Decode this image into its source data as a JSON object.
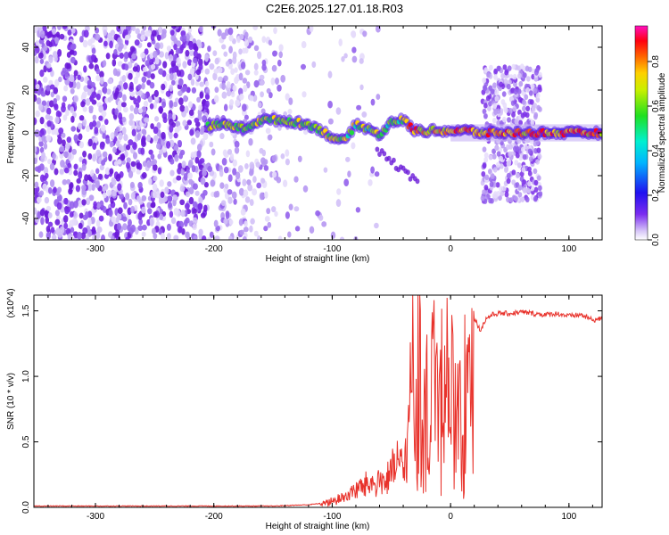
{
  "title": "C2E6.2025.127.01.18.R03",
  "colors": {
    "snr_line": "#e8312a",
    "frame": "#000000"
  },
  "chart_data": [
    {
      "type": "heatmap",
      "xlabel": "Height of straight line (km)",
      "ylabel": "Frequency (Hz)",
      "xlim": [
        -352,
        128
      ],
      "ylim": [
        -50,
        50
      ],
      "xticks": [
        -300,
        -200,
        -100,
        0,
        100
      ],
      "xtick_labels": [
        "-300",
        "-200",
        "-100",
        "0",
        "100"
      ],
      "yticks": [
        -40,
        -20,
        0,
        20,
        40
      ],
      "ytick_labels": [
        "-40",
        "-20",
        "0",
        "20",
        "40"
      ],
      "colorbar": {
        "label": "Normalized spectral amplitude",
        "range": [
          0,
          0.96
        ],
        "ticks": [
          0.0,
          0.2,
          0.4,
          0.6,
          0.8
        ],
        "tick_labels": [
          "0.0",
          "0.2",
          "0.4",
          "0.6",
          "0.8"
        ],
        "colormap": "rainbow (white, violet, blue, cyan, green, yellow, orange, red, magenta)"
      },
      "features": {
        "noise_region_x": [
          -352,
          -135
        ],
        "signal_track": [
          [
            -205,
            3
          ],
          [
            -190,
            4
          ],
          [
            -175,
            2
          ],
          [
            -160,
            6
          ],
          [
            -145,
            6
          ],
          [
            -130,
            5
          ],
          [
            -115,
            3
          ],
          [
            -100,
            -2
          ],
          [
            -90,
            -4
          ],
          [
            -80,
            4
          ],
          [
            -70,
            2
          ],
          [
            -60,
            -1
          ],
          [
            -50,
            5
          ],
          [
            -40,
            6
          ],
          [
            -30,
            1
          ],
          [
            -15,
            1
          ],
          [
            0,
            1
          ],
          [
            15,
            1
          ],
          [
            25,
            0
          ],
          [
            50,
            0
          ],
          [
            75,
            0
          ],
          [
            100,
            0
          ],
          [
            128,
            0
          ]
        ],
        "wideband_block_x": [
          27,
          76
        ],
        "wideband_block_ylim": [
          -32,
          31
        ]
      }
    },
    {
      "type": "line",
      "xlabel": "Height of straight line (km)",
      "ylabel": "SNR (10 * v/v)",
      "y_multiplier": "(x10^4)",
      "xlim": [
        -352,
        128
      ],
      "ylim": [
        0,
        1.62
      ],
      "xticks": [
        -300,
        -200,
        -100,
        0,
        100
      ],
      "xtick_labels": [
        "-300",
        "-200",
        "-100",
        "0",
        "100"
      ],
      "yticks": [
        0.0,
        0.5,
        1.0,
        1.5
      ],
      "ytick_labels": [
        "0.0",
        "0.5",
        "1.0",
        "1.5"
      ],
      "series": [
        {
          "x": [
            -352,
            -300,
            -250,
            -200,
            -150,
            -120,
            -110,
            -100,
            -90,
            -80,
            -70,
            -60,
            -50,
            -45,
            -40,
            -35,
            -32,
            -30,
            -28,
            -25,
            -22,
            -20,
            -18,
            -15,
            -12,
            -10,
            -8,
            -5,
            -3,
            0,
            3,
            5,
            8,
            10,
            12,
            14,
            16,
            18,
            20,
            25,
            30,
            35,
            40,
            50,
            60,
            70,
            80,
            90,
            100,
            110,
            120,
            128
          ],
          "y": [
            0.01,
            0.01,
            0.01,
            0.01,
            0.01,
            0.02,
            0.03,
            0.06,
            0.1,
            0.17,
            0.22,
            0.25,
            0.3,
            0.45,
            0.35,
            0.72,
            1.62,
            0.42,
            1.58,
            1.2,
            0.85,
            1.56,
            0.4,
            1.48,
            1.2,
            0.95,
            1.35,
            1.1,
            1.28,
            1.05,
            1.38,
            0.75,
            1.22,
            0.55,
            1.3,
            1.25,
            1.38,
            1.42,
            1.45,
            1.35,
            1.44,
            1.47,
            1.48,
            1.48,
            1.49,
            1.48,
            1.47,
            1.48,
            1.46,
            1.47,
            1.43,
            1.44
          ]
        }
      ]
    }
  ]
}
